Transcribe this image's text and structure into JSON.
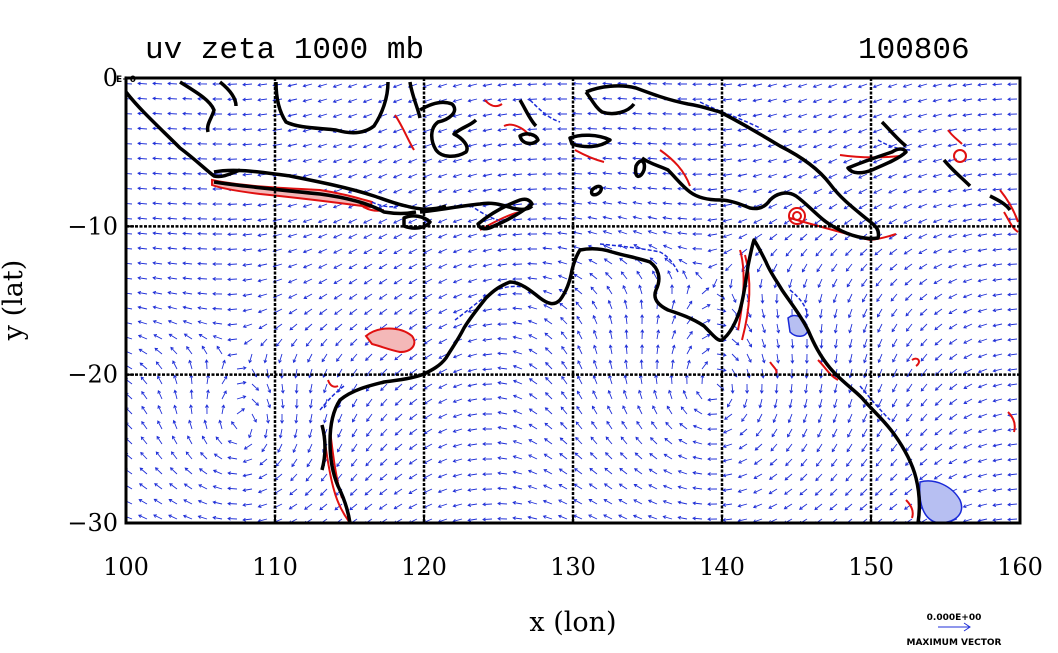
{
  "title": "uv zeta 1000 mb",
  "date_label": "100806",
  "x_axis": {
    "label": "x (lon)",
    "ticks": [
      "100",
      "110",
      "120",
      "130",
      "140",
      "150",
      "160"
    ],
    "range": [
      100,
      160
    ]
  },
  "y_axis": {
    "label": "y (lat)",
    "ticks": [
      "0",
      "−10",
      "−20",
      "−30"
    ],
    "range": [
      -30,
      0
    ]
  },
  "corner_label": "E+0",
  "vector_legend": {
    "value": "0.000E+00",
    "caption": "MAXIMUM VECTOR"
  },
  "colors": {
    "coast": "#000000",
    "vector": "#1f2fd8",
    "positive_contour": "#e01010",
    "negative_contour": "#1a2ad8",
    "positive_fill": "#f4b8b8",
    "negative_fill": "#b7bff2"
  }
}
